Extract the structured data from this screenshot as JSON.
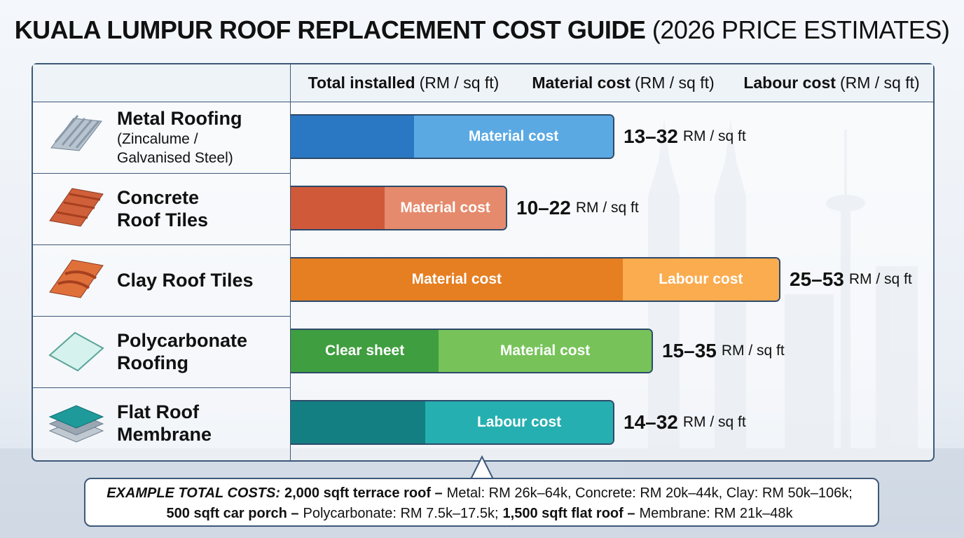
{
  "header": {
    "title": "KUALA LUMPUR ROOF REPLACEMENT COST GUIDE",
    "title_note": "(2026 PRICE ESTIMATES)"
  },
  "columns": [
    {
      "label": "Total installed",
      "unit": "(RM / sq ft)"
    },
    {
      "label": "Material cost",
      "unit": "(RM / sq ft)"
    },
    {
      "label": "Labour cost",
      "unit": "(RM / sq ft)"
    }
  ],
  "rows": [
    {
      "name": [
        "Metal Roofing"
      ],
      "sub": [
        "(Zincalume /",
        "Galvanised Steel)"
      ],
      "range": "13–32",
      "unit": "RM / sq ft",
      "segments": [
        {
          "color": "#2a78c4"
        },
        {
          "label": "Material cost",
          "color": "#5aa9e3"
        }
      ]
    },
    {
      "name": [
        "Concrete",
        "Roof Tiles"
      ],
      "range": "10–22",
      "unit": "RM / sq ft",
      "segments": [
        {
          "color": "#d0593a"
        },
        {
          "label": "Material cost",
          "color": "#e58a6c"
        }
      ]
    },
    {
      "name": [
        "Clay Roof Tiles"
      ],
      "range": "25–53",
      "unit": "RM / sq ft",
      "segments": [
        {
          "label": "Material cost",
          "color": "#e57f22"
        },
        {
          "label": "Labour cost",
          "color": "#fbac4f"
        }
      ]
    },
    {
      "name": [
        "Polycarbonate",
        "Roofing"
      ],
      "range": "15–35",
      "unit": "RM / sq ft",
      "segments": [
        {
          "label": "Clear sheet",
          "color": "#3f9e3f"
        },
        {
          "label": "Material cost",
          "color": "#77c35a"
        }
      ]
    },
    {
      "name": [
        "Flat Roof",
        "Membrane"
      ],
      "range": "14–32",
      "unit": "RM / sq ft",
      "segments": [
        {
          "color": "#137f82"
        },
        {
          "label": "Labour cost",
          "color": "#26afb0"
        }
      ]
    }
  ],
  "footer": [
    [
      {
        "text": "EXAMPLE TOTAL COSTS:",
        "style": "bi"
      },
      {
        "text": "2,000 sqft terrace roof –",
        "style": "b"
      },
      {
        "text": "Metal: RM 26k–64k, Concrete: RM 20k–44k, Clay: RM 50k–106k;",
        "style": "n"
      }
    ],
    [
      {
        "text": "500 sqft car porch –",
        "style": "b"
      },
      {
        "text": "Polycarbonate: RM 7.5k–17.5k;",
        "style": "n"
      },
      {
        "text": "1,500 sqft flat roof –",
        "style": "b"
      },
      {
        "text": "Membrane: RM 21k–48k",
        "style": "n"
      }
    ]
  ]
}
